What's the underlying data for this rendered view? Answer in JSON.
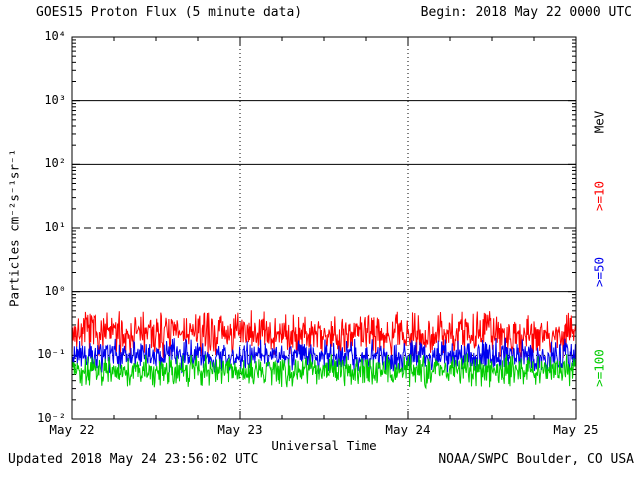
{
  "header": {
    "title": "GOES15 Proton Flux (5 minute data)",
    "begin": "Begin: 2018 May 22 0000 UTC"
  },
  "footer": {
    "updated": "Updated 2018 May 24 23:56:02 UTC",
    "credit": "NOAA/SWPC Boulder, CO USA"
  },
  "chart_data": {
    "type": "line",
    "title": "GOES15 Proton Flux (5 minute data)",
    "begin": "2018 May 22 0000 UTC",
    "xlabel": "Universal Time",
    "ylabel": "Particles cm⁻²s⁻¹sr⁻¹",
    "y_scale": "log",
    "ylim": [
      0.01,
      10000
    ],
    "y_ticks": [
      "10⁴",
      "10³",
      "10²",
      "10¹",
      "10⁰",
      "10⁻¹",
      "10⁻²"
    ],
    "y_tick_exponents": [
      4,
      3,
      2,
      1,
      0,
      -1,
      -2
    ],
    "x_ticks": [
      "May 22",
      "May 23",
      "May 24",
      "May 25"
    ],
    "x_range_days": 3,
    "cadence_minutes": 5,
    "grid": {
      "vlines_days": [
        1,
        2
      ],
      "hlines": [
        {
          "value": 1000,
          "style": "solid"
        },
        {
          "value": 100,
          "style": "solid"
        },
        {
          "value": 10,
          "style": "dashed"
        },
        {
          "value": 1,
          "style": "solid"
        },
        {
          "value": 0.1,
          "style": "dotted"
        }
      ]
    },
    "right_axis_labels": [
      {
        "label": "MeV",
        "color": "#000000"
      },
      {
        "label": ">=10",
        "color": "#ff0000"
      },
      {
        "label": ">=50",
        "color": "#0000ee"
      },
      {
        "label": ">=100",
        "color": "#00cc00"
      }
    ],
    "series": [
      {
        "name": ">=10 MeV",
        "color": "#ff0000",
        "baseline": 0.22,
        "approx_range": [
          0.09,
          0.55
        ],
        "points": 864
      },
      {
        "name": ">=50 MeV",
        "color": "#0000ee",
        "baseline": 0.1,
        "approx_range": [
          0.05,
          0.2
        ],
        "points": 864
      },
      {
        "name": ">=100 MeV",
        "color": "#00cc00",
        "baseline": 0.057,
        "approx_range": [
          0.03,
          0.11
        ],
        "points": 864
      }
    ]
  }
}
